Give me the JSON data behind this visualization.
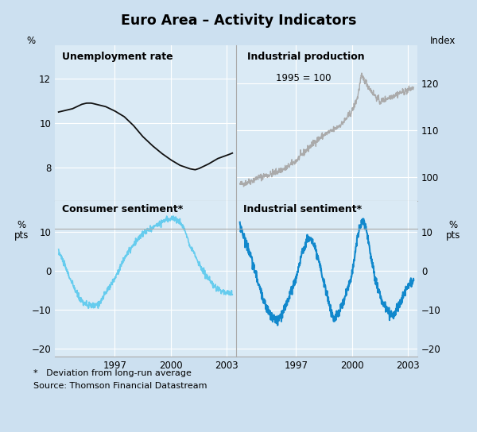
{
  "title": "Euro Area – Activity Indicators",
  "background_color": "#cce0f0",
  "plot_bg_color": "#daeaf5",
  "unemp_label": "Unemployment rate",
  "unemp_ylabel": "%",
  "unemp_ylim": [
    6.5,
    13.5
  ],
  "unemp_yticks": [
    8,
    10,
    12
  ],
  "unemp_xlim": [
    1993.8,
    2003.5
  ],
  "indprod_label": "Industrial production",
  "indprod_sublabel": "1995 = 100",
  "indprod_ylabel": "Index",
  "indprod_ylim": [
    95,
    128
  ],
  "indprod_yticks": [
    100,
    110,
    120
  ],
  "indprod_xlim": [
    1993.8,
    2003.5
  ],
  "consumer_label": "Consumer sentiment*",
  "consumer_ylabel": "% pts",
  "consumer_ylim": [
    -22,
    18
  ],
  "consumer_yticks": [
    -20,
    -10,
    0,
    10
  ],
  "consumer_xlim": [
    1993.8,
    2003.5
  ],
  "industrial_label": "Industrial sentiment*",
  "industrial_ylabel": "% pts",
  "industrial_ylim": [
    -22,
    18
  ],
  "industrial_yticks": [
    -20,
    -10,
    0,
    10
  ],
  "industrial_xlim": [
    1993.8,
    2003.5
  ],
  "xtick_years_bottom": [
    1997,
    2000,
    2003
  ],
  "xtick_years_top": [
    1997,
    2000,
    2003
  ],
  "footnote_line1": "*   Deviation from long-run average",
  "footnote_line2": "Source: Thomson Financial Datastream",
  "color_unemp": "#111111",
  "color_indprod": "#aaaaaa",
  "color_consumer": "#66ccee",
  "color_industrial": "#1188cc",
  "grid_color": "#ffffff",
  "spine_color": "#aaaaaa"
}
